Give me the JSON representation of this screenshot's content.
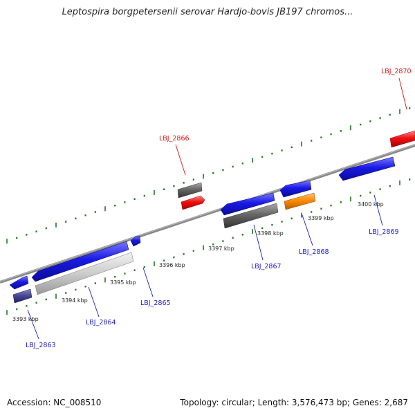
{
  "title": "Leptospira borgpetersenii serovar Hardjo-bovis JB197 chromos...",
  "footer": {
    "accession": "Accession: NC_008510",
    "summary": "Topology: circular; Length: 3,576,473 bp; Genes: 2,687"
  },
  "scale_labels": [
    "3393 kbp",
    "3394 kbp",
    "3395 kbp",
    "3396 kbp",
    "3397 kbp",
    "3398 kbp",
    "3399 kbp",
    "3400 kbp"
  ],
  "gene_labels": [
    "LBJ_2863",
    "LBJ_2864",
    "LBJ_2865",
    "LBJ_2866",
    "LBJ_2867",
    "LBJ_2868",
    "LBJ_2869",
    "LBJ_2870"
  ],
  "colors": {
    "forward_gene": "#1a1ae6",
    "highlight_gene": "#ee1111",
    "pseudo_gene": "#666666",
    "rna_gene": "#ff8c00",
    "backbone": "#888888",
    "tick": "#1a7a1a",
    "label_blue": "#1a1acc",
    "label_red": "#dd1111"
  }
}
